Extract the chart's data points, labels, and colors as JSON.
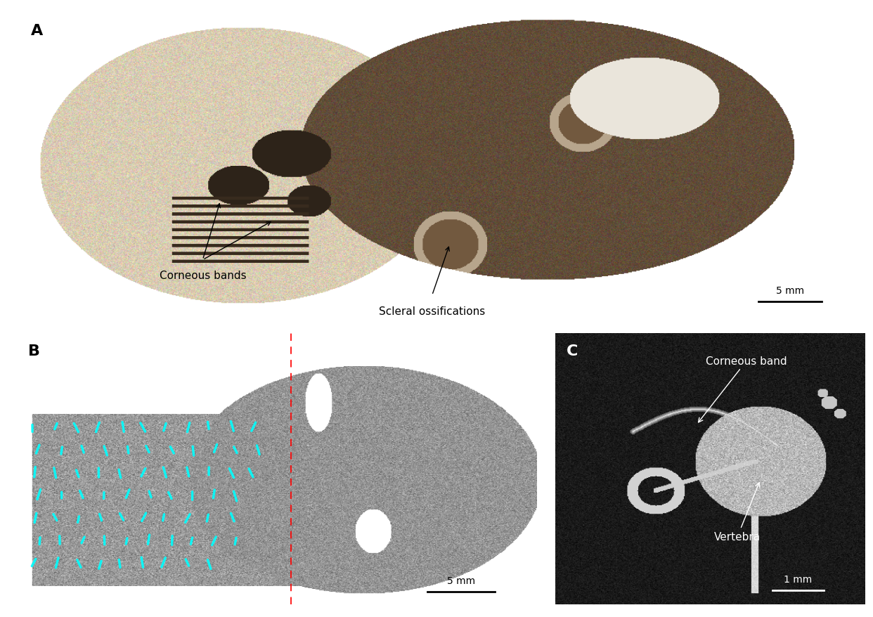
{
  "figure_width": 12.42,
  "figure_height": 8.79,
  "dpi": 100,
  "bg_color": "#ffffff",
  "panel_A": {
    "label": "A",
    "annotation_corneous_bands": "Corneous bands",
    "annotation_scleral": "Scleral ossifications",
    "scalebar_text": "5 mm",
    "label_fontsize": 16,
    "annotation_fontsize": 11
  },
  "panel_B": {
    "label": "B",
    "scalebar_text": "5 mm",
    "label_fontsize": 16,
    "annotation_fontsize": 11
  },
  "panel_C": {
    "label": "C",
    "annotation_corneous_band": "Corneous band",
    "annotation_vertebra": "Vertebra",
    "scalebar_text": "1 mm",
    "label_fontsize": 16,
    "annotation_fontsize": 11
  }
}
